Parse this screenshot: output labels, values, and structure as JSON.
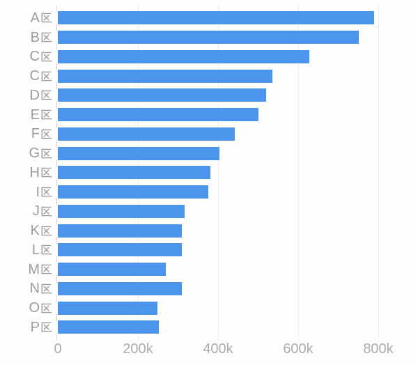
{
  "chart_data": {
    "type": "bar",
    "orientation": "horizontal",
    "title": "",
    "categories": [
      "A区",
      "B区",
      "C区",
      "C区",
      "D区",
      "E区",
      "F区",
      "G区",
      "H区",
      "I区",
      "J区",
      "K区",
      "L区",
      "M区",
      "N区",
      "O区",
      "P区"
    ],
    "values": [
      790000,
      752000,
      627000,
      535000,
      520000,
      500000,
      441000,
      403000,
      380000,
      375000,
      317000,
      309000,
      309000,
      269000,
      309000,
      248000,
      253000
    ],
    "x_tick_labels": [
      "0",
      "200k",
      "400k",
      "600k",
      "800k"
    ],
    "x_tick_values": [
      0,
      200000,
      400000,
      600000,
      800000
    ],
    "xlim": [
      0,
      800000
    ],
    "grid": true,
    "legend": "none",
    "colors": {
      "bar": "#4B96EC",
      "category_label": "#9C9C9C",
      "axis_label": "#ADADAD",
      "gridline": "#ECECEC",
      "axis_tick": "#D9D9D9",
      "background": "#FDFDFC"
    }
  }
}
